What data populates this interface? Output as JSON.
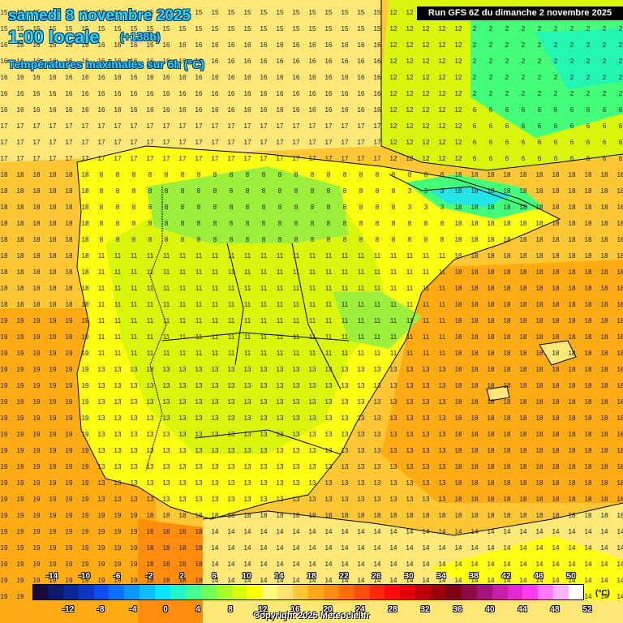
{
  "header": {
    "date": "samedi 8 novembre 2025",
    "time": "1:00 locale",
    "offset": "(+138h)",
    "title": "Températures maximales sur 6h (°C)",
    "run": "Run GFS 6Z du dimanche 2 novembre 2025"
  },
  "footer": {
    "copyright": "Copyright 2025 Meteociel.fr"
  },
  "legend": {
    "unit": "(°C)",
    "labels_top": [
      "-14",
      "-10",
      "-6",
      "-2",
      "2",
      "6",
      "10",
      "14",
      "18",
      "22",
      "26",
      "30",
      "34",
      "38",
      "42",
      "46",
      "50"
    ],
    "labels_bottom": [
      "-12",
      "-8",
      "-4",
      "0",
      "4",
      "8",
      "12",
      "16",
      "20",
      "24",
      "28",
      "32",
      "36",
      "40",
      "44",
      "48",
      "52"
    ],
    "colors": [
      "#1a0a3c",
      "#0c1a6e",
      "#0a2896",
      "#0a36c4",
      "#0a4df0",
      "#0a6eff",
      "#0a96ff",
      "#0abeff",
      "#0ae6ff",
      "#22f5c8",
      "#44ff94",
      "#6eff5a",
      "#a8ff28",
      "#d6ff0a",
      "#ffff0a",
      "#ffff7a",
      "#ffe26e",
      "#ffc832",
      "#ffaa14",
      "#ff8c0a",
      "#ff6e0a",
      "#ff4e0a",
      "#ff280a",
      "#ff0a0a",
      "#e0000a",
      "#be000a",
      "#9c000a",
      "#7c0014",
      "#8c0a46",
      "#a0147c",
      "#c81eaa",
      "#e628d2",
      "#ff3cf0",
      "#ff78ff",
      "#ffb4ff",
      "#ffffff"
    ]
  },
  "map": {
    "colors": {
      "c10": "#9cf03c",
      "c12": "#d9f70a",
      "c14": "#ffff14",
      "c16": "#ffe878",
      "c18": "#ffc832",
      "c20": "#ffab14",
      "c22": "#ff8c0a",
      "c6": "#44ff7a",
      "c4": "#22f5b4",
      "c2": "#22e6e6",
      "c0": "#1ad2ff"
    },
    "sample_values": [
      {
        "v": "15",
        "r": 0
      },
      {
        "v": "16",
        "r": 1
      },
      {
        "v": "17",
        "r": 2
      },
      {
        "v": "18",
        "r": 3
      },
      {
        "v": "19",
        "r": 4
      }
    ]
  }
}
